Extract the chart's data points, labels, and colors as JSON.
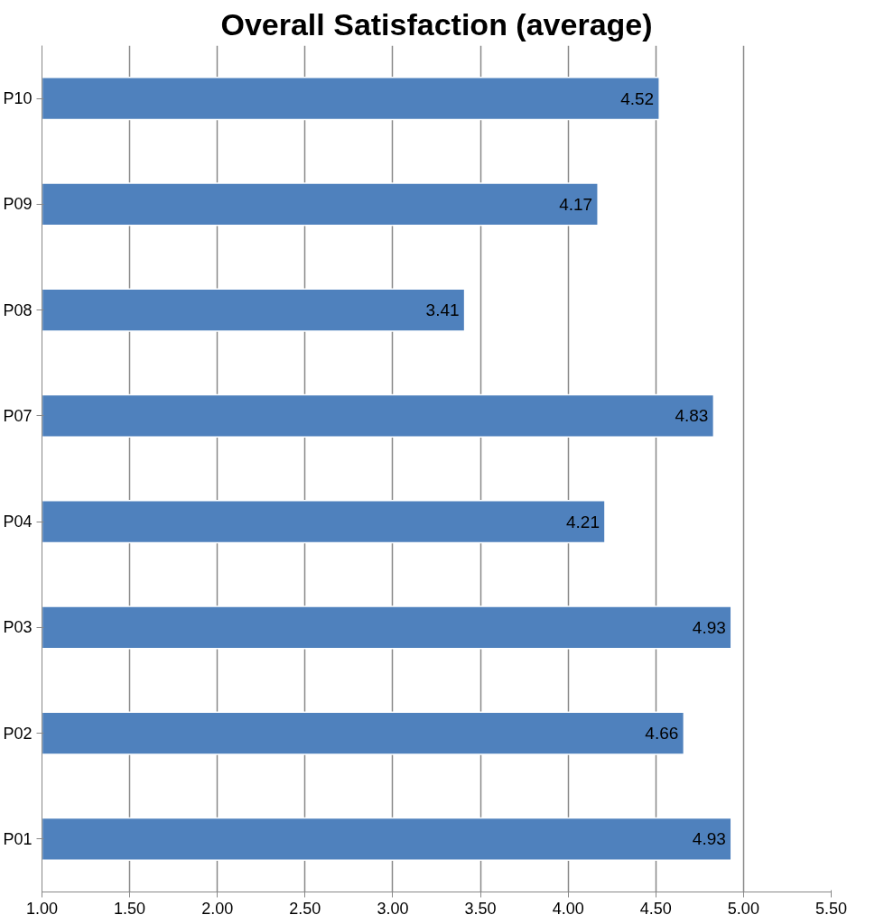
{
  "chart_data": {
    "type": "bar",
    "orientation": "horizontal",
    "title": "Overall Satisfaction (average)",
    "categories": [
      "P10",
      "P09",
      "P08",
      "P07",
      "P04",
      "P03",
      "P02",
      "P01"
    ],
    "values": [
      4.52,
      4.17,
      3.41,
      4.83,
      4.21,
      4.93,
      4.66,
      4.93
    ],
    "color": "#4f81bd",
    "xlim": [
      1,
      5.5
    ],
    "xticks": [
      {
        "value": 1,
        "label": "1.00"
      },
      {
        "value": 1.5,
        "label": "1.50"
      },
      {
        "value": 2,
        "label": "2.00"
      },
      {
        "value": 2.5,
        "label": "2.50"
      },
      {
        "value": 3,
        "label": "3.00"
      },
      {
        "value": 3.5,
        "label": "3.50"
      },
      {
        "value": 4,
        "label": "4.00"
      },
      {
        "value": 4.5,
        "label": "4.50"
      },
      {
        "value": 5,
        "label": "5.00"
      },
      {
        "value": 5.5,
        "label": "5.50"
      }
    ],
    "grid": "x",
    "data_labels": true
  }
}
